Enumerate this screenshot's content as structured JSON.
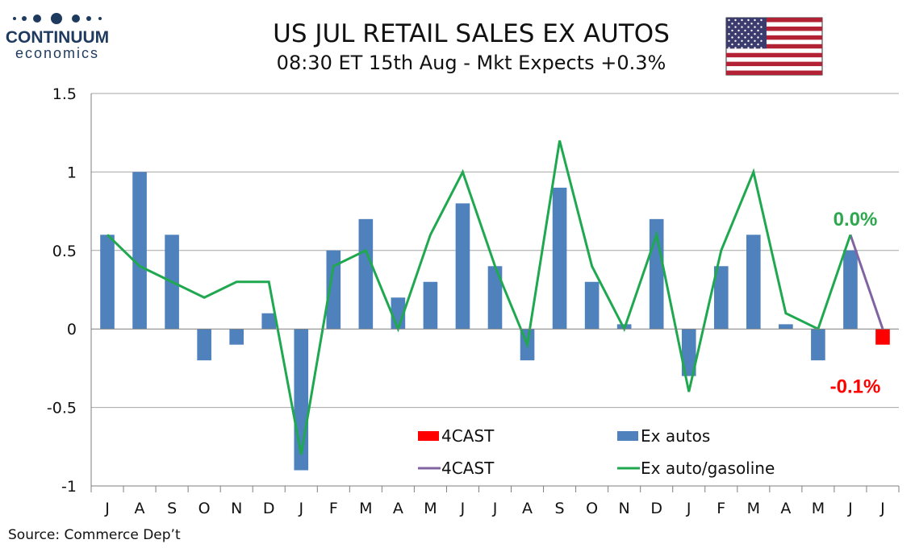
{
  "logo": {
    "top": "CONTINUUM",
    "bottom": "economics"
  },
  "colors": {
    "bar": "#4f81bd",
    "bar_forecast": "#ff0000",
    "line": "#1fa84f",
    "line_forecast": "#8064a2",
    "annot_up": "#2ea84e",
    "annot_down": "#ff0000",
    "grid": "#a6a6a6",
    "flag_red": "#b22234",
    "flag_blue": "#3c3b6e"
  },
  "chart_data": {
    "type": "bar",
    "title": "US JUL RETAIL SALES EX AUTOS",
    "subtitle": "08:30 ET 15th Aug - Mkt Expects +0.3%",
    "source": "Source: Commerce Dep’t",
    "categories": [
      "J",
      "A",
      "S",
      "O",
      "N",
      "D",
      "J",
      "F",
      "M",
      "A",
      "M",
      "J",
      "J",
      "A",
      "S",
      "O",
      "N",
      "D",
      "J",
      "F",
      "M",
      "A",
      "M",
      "J",
      "J"
    ],
    "ylim": [
      -1,
      1.5
    ],
    "yticks": [
      -1,
      -0.5,
      0,
      0.5,
      1,
      1.5
    ],
    "ytick_labels": [
      "-1",
      "-0.5",
      "0",
      "0.5",
      "1",
      "1.5"
    ],
    "grid": true,
    "series": [
      {
        "name": "Ex autos",
        "kind": "bar",
        "values": [
          0.6,
          1.0,
          0.6,
          -0.2,
          -0.1,
          0.1,
          -0.9,
          0.5,
          0.7,
          0.2,
          0.3,
          0.8,
          0.4,
          -0.2,
          0.9,
          0.3,
          0.03,
          0.7,
          -0.3,
          0.4,
          0.6,
          0.03,
          -0.2,
          0.5,
          null
        ]
      },
      {
        "name": "4CAST",
        "kind": "bar",
        "values": [
          null,
          null,
          null,
          null,
          null,
          null,
          null,
          null,
          null,
          null,
          null,
          null,
          null,
          null,
          null,
          null,
          null,
          null,
          null,
          null,
          null,
          null,
          null,
          null,
          -0.1
        ]
      },
      {
        "name": "Ex auto/gasoline",
        "kind": "line",
        "values": [
          0.6,
          0.4,
          0.3,
          0.2,
          0.3,
          0.3,
          -0.8,
          0.4,
          0.5,
          0.0,
          0.6,
          1.0,
          0.4,
          -0.1,
          1.2,
          0.4,
          0.0,
          0.6,
          -0.4,
          0.5,
          1.0,
          0.1,
          0.0,
          0.6,
          null
        ]
      },
      {
        "name": "4CAST",
        "kind": "line",
        "values": [
          null,
          null,
          null,
          null,
          null,
          null,
          null,
          null,
          null,
          null,
          null,
          null,
          null,
          null,
          null,
          null,
          null,
          null,
          null,
          null,
          null,
          null,
          null,
          0.6,
          0.0
        ]
      }
    ],
    "legend": {
      "placement": "bottom-center",
      "items": [
        {
          "label": "4CAST",
          "kind": "bar",
          "series": 1
        },
        {
          "label": "Ex autos",
          "kind": "bar",
          "series": 0
        },
        {
          "label": "4CAST",
          "kind": "line",
          "series": 3
        },
        {
          "label": "Ex auto/gasoline",
          "kind": "line",
          "series": 2
        }
      ]
    },
    "annotations": [
      {
        "text": "0.0%",
        "category_index": 24,
        "value": 0.0,
        "color_key": "annot_up",
        "placement": "above"
      },
      {
        "text": "-0.1%",
        "category_index": 24,
        "value": -0.1,
        "color_key": "annot_down",
        "placement": "below"
      }
    ]
  }
}
